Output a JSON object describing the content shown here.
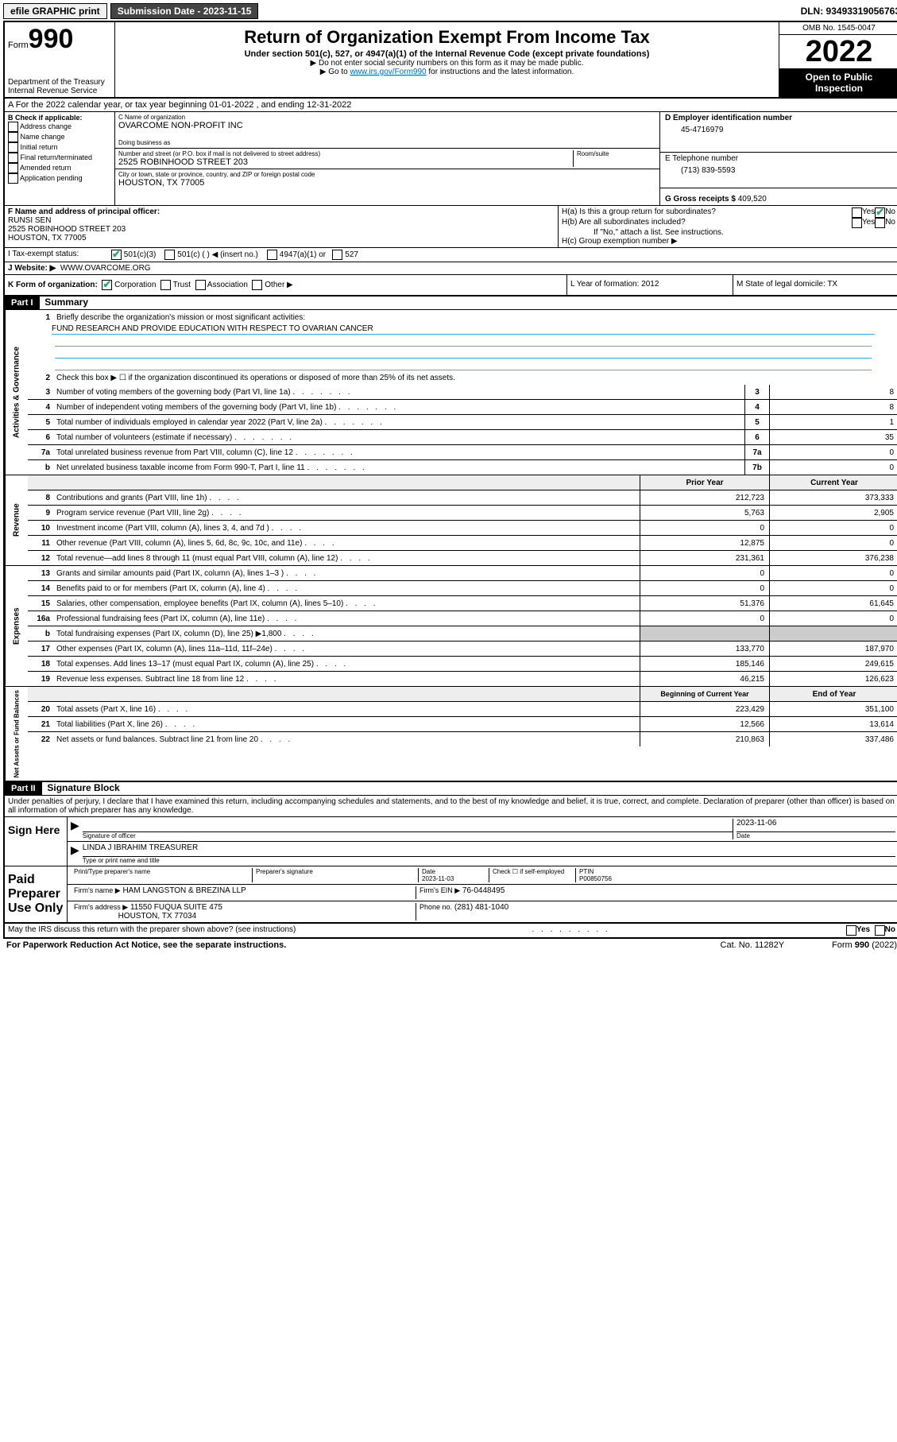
{
  "top": {
    "efile": "efile GRAPHIC print",
    "submission_label": "Submission Date - 2023-11-15",
    "dln": "DLN: 93493319056763"
  },
  "header": {
    "form_prefix": "Form",
    "form_number": "990",
    "dept": "Department of the Treasury",
    "irs": "Internal Revenue Service",
    "title": "Return of Organization Exempt From Income Tax",
    "sub": "Under section 501(c), 527, or 4947(a)(1) of the Internal Revenue Code (except private foundations)",
    "note1": "▶ Do not enter social security numbers on this form as it may be made public.",
    "note2_pre": "▶ Go to ",
    "note2_link": "www.irs.gov/Form990",
    "note2_post": " for instructions and the latest information.",
    "omb": "OMB No. 1545-0047",
    "year": "2022",
    "open": "Open to Public Inspection"
  },
  "row_a": "A For the 2022 calendar year, or tax year beginning 01-01-2022    , and ending 12-31-2022",
  "col_b": {
    "label": "B Check if applicable:",
    "items": [
      "Address change",
      "Name change",
      "Initial return",
      "Final return/terminated",
      "Amended return",
      "Application pending"
    ]
  },
  "col_c": {
    "name_label": "C Name of organization",
    "name": "OVARCOME NON-PROFIT INC",
    "dba_label": "Doing business as",
    "dba": "",
    "street_label": "Number and street (or P.O. box if mail is not delivered to street address)",
    "room_label": "Room/suite",
    "street": "2525 ROBINHOOD STREET 203",
    "city_label": "City or town, state or province, country, and ZIP or foreign postal code",
    "city": "HOUSTON, TX  77005"
  },
  "col_d": {
    "label": "D Employer identification number",
    "val": "45-4716979"
  },
  "col_e": {
    "label": "E Telephone number",
    "val": "(713) 839-5593"
  },
  "col_g": {
    "label": "G Gross receipts $",
    "val": "409,520"
  },
  "row_f": {
    "label": "F Name and address of principal officer:",
    "name": "RUNSI SEN",
    "addr1": "2525 ROBINHOOD STREET 203",
    "addr2": "HOUSTON, TX  77005"
  },
  "row_h": {
    "ha": "H(a)  Is this a group return for subordinates?",
    "hb": "H(b)  Are all subordinates included?",
    "hb_note": "If \"No,\" attach a list. See instructions.",
    "hc": "H(c)  Group exemption number ▶",
    "yes": "Yes",
    "no": "No"
  },
  "row_i": {
    "label": "I   Tax-exempt status:",
    "o1": "501(c)(3)",
    "o2": "501(c) (   ) ◀ (insert no.)",
    "o3": "4947(a)(1) or",
    "o4": "527"
  },
  "row_j": {
    "label": "J   Website: ▶",
    "val": "WWW.OVARCOME.ORG"
  },
  "row_k": {
    "label": "K Form of organization:",
    "o1": "Corporation",
    "o2": "Trust",
    "o3": "Association",
    "o4": "Other ▶"
  },
  "row_l": "L Year of formation: 2012",
  "row_m": "M State of legal domicile: TX",
  "part1": {
    "num": "Part I",
    "title": "Summary"
  },
  "gov": {
    "label": "Activities & Governance",
    "l1": "Briefly describe the organization's mission or most significant activities:",
    "l1_val": "FUND RESEARCH AND PROVIDE EDUCATION WITH RESPECT TO OVARIAN CANCER",
    "l2": "Check this box ▶ ☐ if the organization discontinued its operations or disposed of more than 25% of its net assets.",
    "rows": [
      {
        "n": "3",
        "t": "Number of voting members of the governing body (Part VI, line 1a)",
        "box": "3",
        "v": "8"
      },
      {
        "n": "4",
        "t": "Number of independent voting members of the governing body (Part VI, line 1b)",
        "box": "4",
        "v": "8"
      },
      {
        "n": "5",
        "t": "Total number of individuals employed in calendar year 2022 (Part V, line 2a)",
        "box": "5",
        "v": "1"
      },
      {
        "n": "6",
        "t": "Total number of volunteers (estimate if necessary)",
        "box": "6",
        "v": "35"
      },
      {
        "n": "7a",
        "t": "Total unrelated business revenue from Part VIII, column (C), line 12",
        "box": "7a",
        "v": "0"
      },
      {
        "n": "b",
        "t": "Net unrelated business taxable income from Form 990-T, Part I, line 11",
        "box": "7b",
        "v": "0"
      }
    ]
  },
  "twocol_header": {
    "prior": "Prior Year",
    "current": "Current Year"
  },
  "rev": {
    "label": "Revenue",
    "rows": [
      {
        "n": "8",
        "t": "Contributions and grants (Part VIII, line 1h)",
        "p": "212,723",
        "c": "373,333"
      },
      {
        "n": "9",
        "t": "Program service revenue (Part VIII, line 2g)",
        "p": "5,763",
        "c": "2,905"
      },
      {
        "n": "10",
        "t": "Investment income (Part VIII, column (A), lines 3, 4, and 7d )",
        "p": "0",
        "c": "0"
      },
      {
        "n": "11",
        "t": "Other revenue (Part VIII, column (A), lines 5, 6d, 8c, 9c, 10c, and 11e)",
        "p": "12,875",
        "c": "0"
      },
      {
        "n": "12",
        "t": "Total revenue—add lines 8 through 11 (must equal Part VIII, column (A), line 12)",
        "p": "231,361",
        "c": "376,238"
      }
    ]
  },
  "exp": {
    "label": "Expenses",
    "rows": [
      {
        "n": "13",
        "t": "Grants and similar amounts paid (Part IX, column (A), lines 1–3 )",
        "p": "0",
        "c": "0"
      },
      {
        "n": "14",
        "t": "Benefits paid to or for members (Part IX, column (A), line 4)",
        "p": "0",
        "c": "0"
      },
      {
        "n": "15",
        "t": "Salaries, other compensation, employee benefits (Part IX, column (A), lines 5–10)",
        "p": "51,376",
        "c": "61,645"
      },
      {
        "n": "16a",
        "t": "Professional fundraising fees (Part IX, column (A), line 11e)",
        "p": "0",
        "c": "0"
      },
      {
        "n": "b",
        "t": "Total fundraising expenses (Part IX, column (D), line 25) ▶1,800",
        "p": "",
        "c": ""
      },
      {
        "n": "17",
        "t": "Other expenses (Part IX, column (A), lines 11a–11d, 11f–24e)",
        "p": "133,770",
        "c": "187,970"
      },
      {
        "n": "18",
        "t": "Total expenses. Add lines 13–17 (must equal Part IX, column (A), line 25)",
        "p": "185,146",
        "c": "249,615"
      },
      {
        "n": "19",
        "t": "Revenue less expenses. Subtract line 18 from line 12",
        "p": "46,215",
        "c": "126,623"
      }
    ]
  },
  "na": {
    "label": "Net Assets or Fund Balances",
    "header": {
      "begin": "Beginning of Current Year",
      "end": "End of Year"
    },
    "rows": [
      {
        "n": "20",
        "t": "Total assets (Part X, line 16)",
        "p": "223,429",
        "c": "351,100"
      },
      {
        "n": "21",
        "t": "Total liabilities (Part X, line 26)",
        "p": "12,566",
        "c": "13,614"
      },
      {
        "n": "22",
        "t": "Net assets or fund balances. Subtract line 21 from line 20",
        "p": "210,863",
        "c": "337,486"
      }
    ]
  },
  "part2": {
    "num": "Part II",
    "title": "Signature Block"
  },
  "sig_decl": "Under penalties of perjury, I declare that I have examined this return, including accompanying schedules and statements, and to the best of my knowledge and belief, it is true, correct, and complete. Declaration of preparer (other than officer) is based on all information of which preparer has any knowledge.",
  "sign": {
    "label": "Sign Here",
    "sig_of_officer": "Signature of officer",
    "date": "Date",
    "date_val": "2023-11-06",
    "name": "LINDA J IBRAHIM TREASURER",
    "name_label": "Type or print name and title"
  },
  "paid": {
    "label": "Paid Preparer Use Only",
    "h1": "Print/Type preparer's name",
    "h2": "Preparer's signature",
    "h3": "Date",
    "h3_val": "2023-11-03",
    "h4": "Check ☐ if self-employed",
    "h5": "PTIN",
    "h5_val": "P00850756",
    "firm_name_label": "Firm's name    ▶",
    "firm_name": "HAM LANGSTON & BREZINA LLP",
    "firm_ein_label": "Firm's EIN ▶",
    "firm_ein": "76-0448495",
    "firm_addr_label": "Firm's address ▶",
    "firm_addr1": "11550 FUQUA SUITE 475",
    "firm_addr2": "HOUSTON, TX  77034",
    "phone_label": "Phone no.",
    "phone": "(281) 481-1040"
  },
  "discuss": "May the IRS discuss this return with the preparer shown above? (see instructions)",
  "footer": {
    "l": "For Paperwork Reduction Act Notice, see the separate instructions.",
    "m": "Cat. No. 11282Y",
    "r": "Form 990 (2022)"
  }
}
